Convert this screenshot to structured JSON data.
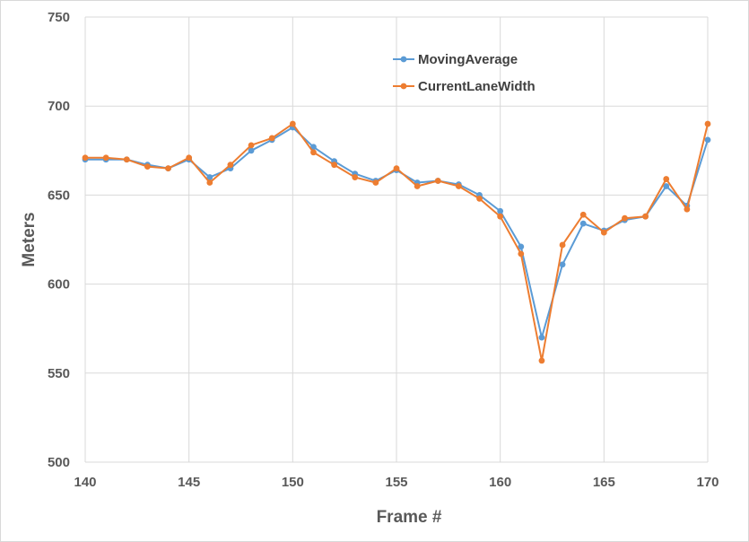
{
  "chart_data": {
    "type": "line",
    "xlabel": "Frame #",
    "ylabel": "Meters",
    "xlim": [
      140,
      170
    ],
    "ylim": [
      500,
      750
    ],
    "x_ticks": [
      140,
      145,
      150,
      155,
      160,
      165,
      170
    ],
    "y_ticks": [
      500,
      550,
      600,
      650,
      700,
      750
    ],
    "grid": true,
    "legend_position": "top-right",
    "x": [
      140,
      141,
      142,
      143,
      144,
      145,
      146,
      147,
      148,
      149,
      150,
      151,
      152,
      153,
      154,
      155,
      156,
      157,
      158,
      159,
      160,
      161,
      162,
      163,
      164,
      165,
      166,
      167,
      168,
      169,
      170
    ],
    "series": [
      {
        "name": "MovingAverage",
        "color": "#5B9BD5",
        "values": [
          670,
          670,
          670,
          667,
          665,
          670,
          660,
          665,
          675,
          681,
          688,
          677,
          669,
          662,
          658,
          664,
          657,
          658,
          656,
          650,
          641,
          621,
          570,
          611,
          634,
          630,
          636,
          638,
          655,
          644,
          681
        ]
      },
      {
        "name": "CurrentLaneWidth",
        "color": "#ED7D31",
        "values": [
          671,
          671,
          670,
          666,
          665,
          671,
          657,
          667,
          678,
          682,
          690,
          674,
          667,
          660,
          657,
          665,
          655,
          658,
          655,
          648,
          638,
          617,
          557,
          622,
          639,
          629,
          637,
          638,
          659,
          642,
          690
        ]
      }
    ]
  }
}
